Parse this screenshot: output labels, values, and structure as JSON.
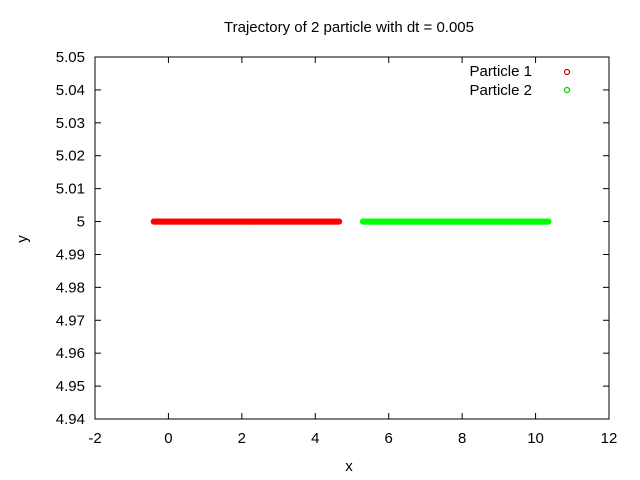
{
  "chart_data": {
    "type": "scatter",
    "title": "Trajectory of 2 particle with dt = 0.005",
    "xlabel": "x",
    "ylabel": "y",
    "xlim": [
      -2,
      12
    ],
    "ylim": [
      4.94,
      5.05
    ],
    "xticks": [
      "-2",
      "0",
      "2",
      "4",
      "6",
      "8",
      "10",
      "12"
    ],
    "yticks": [
      "4.94",
      "4.95",
      "4.96",
      "4.97",
      "4.98",
      "4.99",
      "5",
      "5.01",
      "5.02",
      "5.03",
      "5.04",
      "5.05"
    ],
    "legend_position": "top-right",
    "grid": false,
    "series": [
      {
        "name": "Particle 1",
        "color": "#ff0000",
        "x_start": -0.4,
        "x_end": 4.65,
        "y": 5.0
      },
      {
        "name": "Particle 2",
        "color": "#00ff00",
        "x_start": 5.3,
        "x_end": 10.35,
        "y": 5.0
      }
    ]
  }
}
